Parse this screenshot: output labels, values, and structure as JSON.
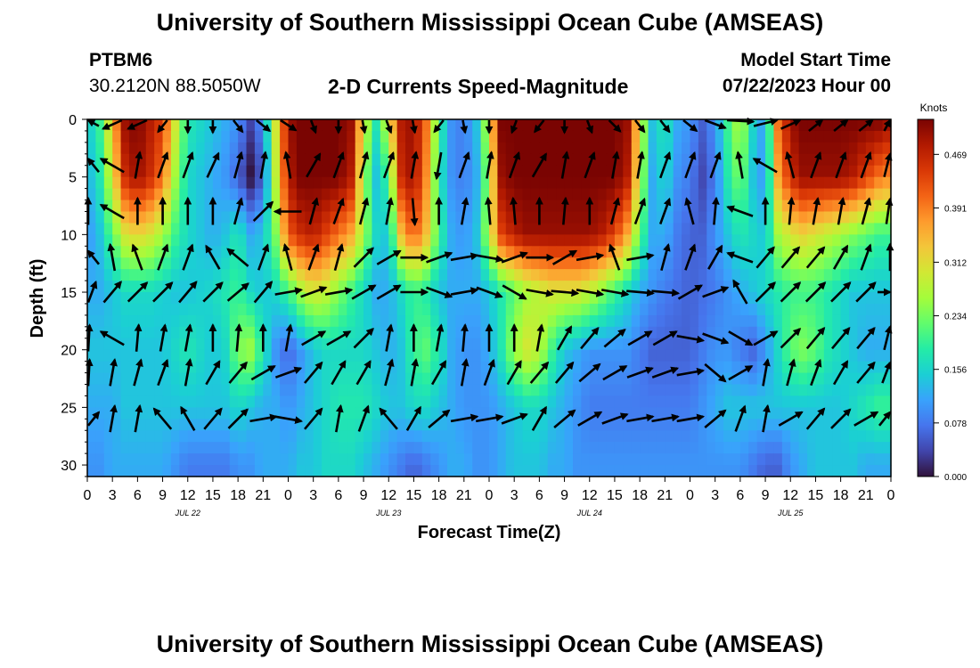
{
  "header": {
    "title": "University of Southern Mississippi Ocean Cube (AMSEAS)",
    "station": "PTBM6",
    "coords": "30.2120N  88.5050W",
    "subtitle": "2-D Currents Speed-Magnitude",
    "model_start_label": "Model Start Time",
    "model_start_value": "07/22/2023 Hour 00"
  },
  "footer": {
    "title": "University of Southern Mississippi Ocean Cube (AMSEAS)"
  },
  "chart_data": {
    "type": "heatmap",
    "title": "2-D Currents Speed-Magnitude",
    "xlabel": "Forecast Time(Z)",
    "ylabel": "Depth (ft)",
    "x_tick_labels": [
      "0",
      "3",
      "6",
      "9",
      "12",
      "15",
      "18",
      "21",
      "0",
      "3",
      "6",
      "9",
      "12",
      "15",
      "18",
      "21",
      "0",
      "3",
      "6",
      "9",
      "12",
      "15",
      "18",
      "21",
      "0",
      "3",
      "6",
      "9",
      "12",
      "15",
      "18",
      "21",
      "0"
    ],
    "x_day_labels": [
      "JUL 22",
      "JUL 23",
      "JUL 24",
      "JUL 25"
    ],
    "xlim_hours": [
      0,
      96
    ],
    "y_ticks": [
      0,
      5,
      10,
      15,
      20,
      25,
      30
    ],
    "y_tick_labels": [
      "0",
      "5",
      "10",
      "15",
      "20",
      "25",
      "30"
    ],
    "ylim": [
      0,
      31
    ],
    "colorbar": {
      "label": "Knots",
      "ticks": [
        0.0,
        0.078,
        0.156,
        0.234,
        0.312,
        0.391,
        0.469
      ],
      "tick_labels": [
        "0.000",
        "0.078",
        "0.156",
        "0.234",
        "0.312",
        "0.391",
        "0.469"
      ],
      "max": 0.52,
      "colors": [
        "#30123b",
        "#4145ab",
        "#4675ed",
        "#39a2fc",
        "#1bcfd4",
        "#24eca6",
        "#61fc6c",
        "#a4fc3b",
        "#d1e834",
        "#f3c63a",
        "#fe9b2d",
        "#f36315",
        "#d93806",
        "#b11901",
        "#7a0402"
      ]
    },
    "speed_grid": {
      "hours": [
        0,
        1.5,
        3,
        4.5,
        6,
        7.5,
        9,
        10.5,
        12,
        13.5,
        15,
        16.5,
        18,
        19.5,
        21,
        22.5,
        24,
        25.5,
        27,
        28.5,
        30,
        31.5,
        33,
        34.5,
        36,
        37.5,
        39,
        40.5,
        42,
        43.5,
        45,
        46.5,
        48,
        49.5,
        51,
        52.5,
        54,
        55.5,
        57,
        58.5,
        60,
        61.5,
        63,
        64.5,
        66,
        67.5,
        69,
        70.5,
        72,
        73.5,
        75,
        76.5,
        78,
        79.5,
        81,
        82.5,
        84,
        85.5,
        87,
        88.5,
        90,
        91.5,
        93,
        94.5,
        96
      ],
      "depths": [
        0,
        5,
        10,
        15,
        20,
        25,
        30
      ],
      "rows": [
        [
          0.14,
          0.2,
          0.34,
          0.5,
          0.52,
          0.48,
          0.44,
          0.3,
          0.18,
          0.16,
          0.14,
          0.12,
          0.1,
          0.04,
          0.1,
          0.3,
          0.5,
          0.52,
          0.52,
          0.52,
          0.52,
          0.5,
          0.3,
          0.18,
          0.3,
          0.48,
          0.5,
          0.4,
          0.2,
          0.1,
          0.08,
          0.14,
          0.3,
          0.52,
          0.52,
          0.52,
          0.52,
          0.52,
          0.52,
          0.52,
          0.52,
          0.52,
          0.52,
          0.5,
          0.3,
          0.14,
          0.18,
          0.12,
          0.1,
          0.06,
          0.1,
          0.2,
          0.28,
          0.16,
          0.1,
          0.4,
          0.5,
          0.52,
          0.52,
          0.52,
          0.52,
          0.52,
          0.52,
          0.52,
          0.5
        ],
        [
          0.12,
          0.18,
          0.3,
          0.46,
          0.5,
          0.46,
          0.4,
          0.26,
          0.16,
          0.14,
          0.12,
          0.1,
          0.06,
          0.0,
          0.06,
          0.28,
          0.48,
          0.52,
          0.52,
          0.52,
          0.52,
          0.48,
          0.26,
          0.14,
          0.2,
          0.46,
          0.5,
          0.38,
          0.18,
          0.1,
          0.08,
          0.12,
          0.26,
          0.5,
          0.52,
          0.52,
          0.52,
          0.52,
          0.52,
          0.52,
          0.52,
          0.52,
          0.52,
          0.48,
          0.28,
          0.12,
          0.16,
          0.1,
          0.08,
          0.04,
          0.08,
          0.18,
          0.24,
          0.14,
          0.1,
          0.36,
          0.46,
          0.5,
          0.5,
          0.5,
          0.5,
          0.48,
          0.44,
          0.4,
          0.38
        ],
        [
          0.1,
          0.14,
          0.22,
          0.3,
          0.32,
          0.3,
          0.26,
          0.2,
          0.16,
          0.14,
          0.12,
          0.14,
          0.18,
          0.12,
          0.14,
          0.24,
          0.42,
          0.46,
          0.48,
          0.44,
          0.4,
          0.36,
          0.26,
          0.16,
          0.14,
          0.34,
          0.42,
          0.34,
          0.2,
          0.12,
          0.1,
          0.14,
          0.28,
          0.44,
          0.48,
          0.5,
          0.5,
          0.5,
          0.5,
          0.5,
          0.5,
          0.48,
          0.44,
          0.36,
          0.22,
          0.12,
          0.12,
          0.08,
          0.06,
          0.06,
          0.1,
          0.14,
          0.18,
          0.16,
          0.14,
          0.26,
          0.3,
          0.32,
          0.3,
          0.28,
          0.26,
          0.24,
          0.22,
          0.2,
          0.2
        ],
        [
          0.12,
          0.12,
          0.14,
          0.16,
          0.16,
          0.16,
          0.15,
          0.14,
          0.14,
          0.15,
          0.16,
          0.18,
          0.2,
          0.16,
          0.14,
          0.16,
          0.2,
          0.26,
          0.3,
          0.28,
          0.24,
          0.2,
          0.16,
          0.12,
          0.12,
          0.16,
          0.2,
          0.18,
          0.14,
          0.12,
          0.12,
          0.12,
          0.14,
          0.18,
          0.22,
          0.26,
          0.28,
          0.3,
          0.3,
          0.3,
          0.28,
          0.24,
          0.2,
          0.16,
          0.12,
          0.1,
          0.08,
          0.07,
          0.06,
          0.07,
          0.08,
          0.1,
          0.12,
          0.14,
          0.16,
          0.18,
          0.2,
          0.2,
          0.2,
          0.18,
          0.16,
          0.14,
          0.14,
          0.14,
          0.14
        ],
        [
          0.14,
          0.14,
          0.14,
          0.14,
          0.14,
          0.14,
          0.14,
          0.16,
          0.18,
          0.16,
          0.14,
          0.16,
          0.24,
          0.26,
          0.18,
          0.1,
          0.06,
          0.1,
          0.14,
          0.16,
          0.16,
          0.16,
          0.16,
          0.14,
          0.12,
          0.14,
          0.2,
          0.22,
          0.18,
          0.12,
          0.1,
          0.1,
          0.12,
          0.18,
          0.26,
          0.3,
          0.28,
          0.2,
          0.14,
          0.12,
          0.1,
          0.1,
          0.1,
          0.1,
          0.08,
          0.06,
          0.06,
          0.06,
          0.06,
          0.08,
          0.1,
          0.1,
          0.08,
          0.06,
          0.1,
          0.16,
          0.22,
          0.24,
          0.22,
          0.18,
          0.16,
          0.14,
          0.12,
          0.12,
          0.12
        ],
        [
          0.12,
          0.12,
          0.12,
          0.14,
          0.14,
          0.14,
          0.14,
          0.14,
          0.14,
          0.14,
          0.14,
          0.14,
          0.16,
          0.14,
          0.12,
          0.12,
          0.1,
          0.12,
          0.14,
          0.16,
          0.18,
          0.18,
          0.18,
          0.16,
          0.14,
          0.14,
          0.16,
          0.16,
          0.14,
          0.12,
          0.1,
          0.1,
          0.1,
          0.12,
          0.14,
          0.16,
          0.16,
          0.14,
          0.12,
          0.1,
          0.08,
          0.08,
          0.08,
          0.08,
          0.08,
          0.08,
          0.08,
          0.08,
          0.08,
          0.1,
          0.12,
          0.14,
          0.14,
          0.14,
          0.14,
          0.14,
          0.14,
          0.14,
          0.14,
          0.14,
          0.14,
          0.16,
          0.18,
          0.2,
          0.2
        ],
        [
          0.1,
          0.1,
          0.12,
          0.12,
          0.12,
          0.12,
          0.12,
          0.1,
          0.08,
          0.08,
          0.08,
          0.08,
          0.1,
          0.1,
          0.12,
          0.12,
          0.12,
          0.14,
          0.14,
          0.16,
          0.16,
          0.16,
          0.14,
          0.12,
          0.1,
          0.08,
          0.06,
          0.08,
          0.1,
          0.12,
          0.12,
          0.1,
          0.1,
          0.12,
          0.14,
          0.14,
          0.14,
          0.12,
          0.12,
          0.1,
          0.1,
          0.1,
          0.1,
          0.1,
          0.1,
          0.1,
          0.1,
          0.1,
          0.1,
          0.1,
          0.1,
          0.1,
          0.1,
          0.08,
          0.06,
          0.06,
          0.1,
          0.12,
          0.14,
          0.14,
          0.14,
          0.14,
          0.12,
          0.12,
          0.12
        ]
      ]
    },
    "vectors": {
      "depths": [
        0,
        4,
        8,
        12,
        15,
        19,
        22,
        26
      ],
      "hours": [
        0,
        3,
        6,
        9,
        12,
        15,
        18,
        21,
        24,
        27,
        30,
        33,
        36,
        39,
        42,
        45,
        48,
        51,
        54,
        57,
        60,
        63,
        66,
        69,
        72,
        75,
        78,
        81,
        84,
        87,
        90,
        93,
        96
      ],
      "angles_deg": [
        [
          300,
          225,
          225,
          200,
          180,
          180,
          160,
          150,
          145,
          170,
          180,
          175,
          170,
          175,
          200,
          175,
          180,
          190,
          200,
          180,
          170,
          155,
          160,
          160,
          150,
          130,
          100,
          60,
          45,
          30,
          30,
          30,
          30
        ],
        [
          300,
          300,
          10,
          20,
          20,
          25,
          15,
          10,
          350,
          30,
          20,
          15,
          20,
          10,
          190,
          20,
          10,
          20,
          30,
          10,
          20,
          10,
          10,
          20,
          20,
          20,
          350,
          300,
          345,
          20,
          20,
          20,
          30
        ],
        [
          0,
          300,
          0,
          0,
          0,
          0,
          15,
          45,
          270,
          15,
          20,
          15,
          10,
          175,
          0,
          10,
          355,
          355,
          0,
          5,
          0,
          15,
          20,
          20,
          345,
          5,
          290,
          0,
          5,
          10,
          10,
          15,
          20
        ],
        [
          300,
          350,
          340,
          20,
          20,
          330,
          310,
          20,
          345,
          20,
          15,
          45,
          60,
          90,
          70,
          80,
          100,
          70,
          90,
          60,
          80,
          340,
          80,
          15,
          20,
          30,
          290,
          40,
          40,
          40,
          30,
          20,
          0
        ],
        [
          40,
          40,
          45,
          45,
          40,
          45,
          50,
          40,
          80,
          70,
          80,
          60,
          60,
          90,
          110,
          80,
          110,
          120,
          100,
          95,
          100,
          100,
          95,
          95,
          60,
          70,
          330,
          45,
          45,
          45,
          45,
          45,
          90
        ],
        [
          10,
          300,
          5,
          10,
          10,
          0,
          5,
          0,
          10,
          60,
          60,
          45,
          10,
          0,
          10,
          5,
          0,
          0,
          10,
          30,
          40,
          50,
          60,
          60,
          100,
          110,
          120,
          60,
          45,
          40,
          40,
          40,
          30
        ],
        [
          10,
          10,
          15,
          20,
          10,
          30,
          40,
          60,
          70,
          40,
          30,
          30,
          15,
          10,
          30,
          10,
          20,
          30,
          40,
          40,
          50,
          60,
          70,
          70,
          80,
          130,
          60,
          10,
          15,
          20,
          30,
          40,
          40
        ],
        [
          60,
          10,
          10,
          320,
          330,
          40,
          45,
          80,
          100,
          40,
          10,
          20,
          320,
          30,
          50,
          80,
          80,
          70,
          30,
          50,
          60,
          70,
          80,
          80,
          80,
          50,
          20,
          10,
          60,
          40,
          45,
          60,
          60
        ]
      ]
    }
  }
}
